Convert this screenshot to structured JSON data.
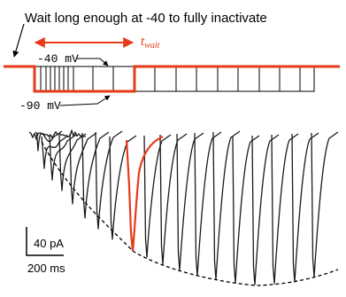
{
  "title": "Wait long enough at -40 to fully inactivate",
  "twait": {
    "main": "t",
    "sub": "wait"
  },
  "voltage_labels": {
    "hold": "-40 mV",
    "step": "-90 mV"
  },
  "scale_bar": {
    "current": "40 pA",
    "time": "200 ms"
  },
  "colors": {
    "highlight": "#e53b1a",
    "trace": "#1a1a1a"
  }
}
